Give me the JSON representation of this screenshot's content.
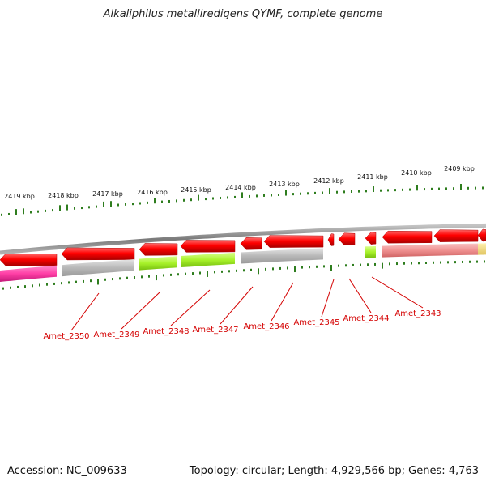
{
  "title": "Alkaliphilus metalliredigens QYMF, complete genome",
  "footer": {
    "accession": "Accession: NC_009633",
    "summary": "Topology: circular; Length: 4,929,566 bp; Genes: 4,763"
  },
  "scale_labels": [
    "2419 kbp",
    "2418 kbp",
    "2417 kbp",
    "2416 kbp",
    "2415 kbp",
    "2414 kbp",
    "2413 kbp",
    "2412 kbp",
    "2411 kbp",
    "2410 kbp",
    "2409 kbp"
  ],
  "gene_labels": [
    "Amet_2350",
    "Amet_2349",
    "Amet_2348",
    "Amet_2347",
    "Amet_2346",
    "Amet_2345",
    "Amet_2344",
    "Amet_2343"
  ],
  "colors": {
    "gene_forward": "#ff0000",
    "backbone": "#8c8c8c",
    "tick": "#2e7d1e",
    "label": "#d40000",
    "cog_magenta": "#ff3fa6",
    "cog_gray": "#c8c8c8",
    "cog_green": "#a8f22a",
    "cog_pink": "#ef9090",
    "cog_yellow": "#f2dc7c"
  }
}
